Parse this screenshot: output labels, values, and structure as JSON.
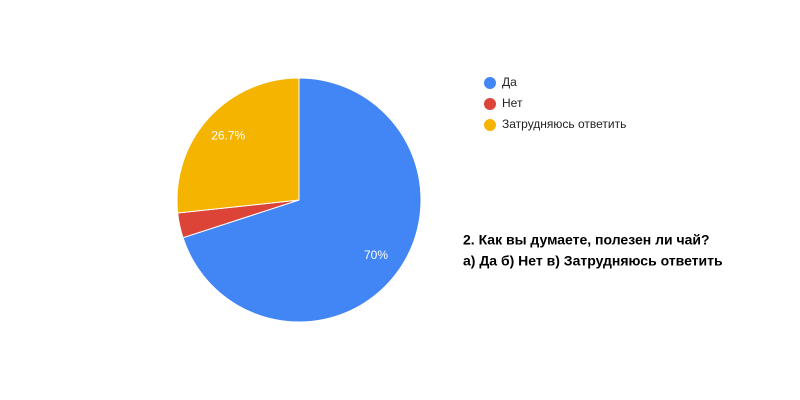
{
  "chart_data": {
    "type": "pie",
    "categories": [
      "Да",
      "Нет",
      "Затрудняюсь ответить"
    ],
    "values": [
      70,
      3.3,
      26.7
    ],
    "value_labels": [
      "70%",
      null,
      "26.7%"
    ],
    "colors": [
      "#4285f4",
      "#db4437",
      "#f4b400"
    ],
    "legend": "right",
    "annotations": [
      "2. Как вы думаете, полезен ли чай?",
      "а) Да б) Нет в) Затрудняюсь ответить"
    ]
  }
}
